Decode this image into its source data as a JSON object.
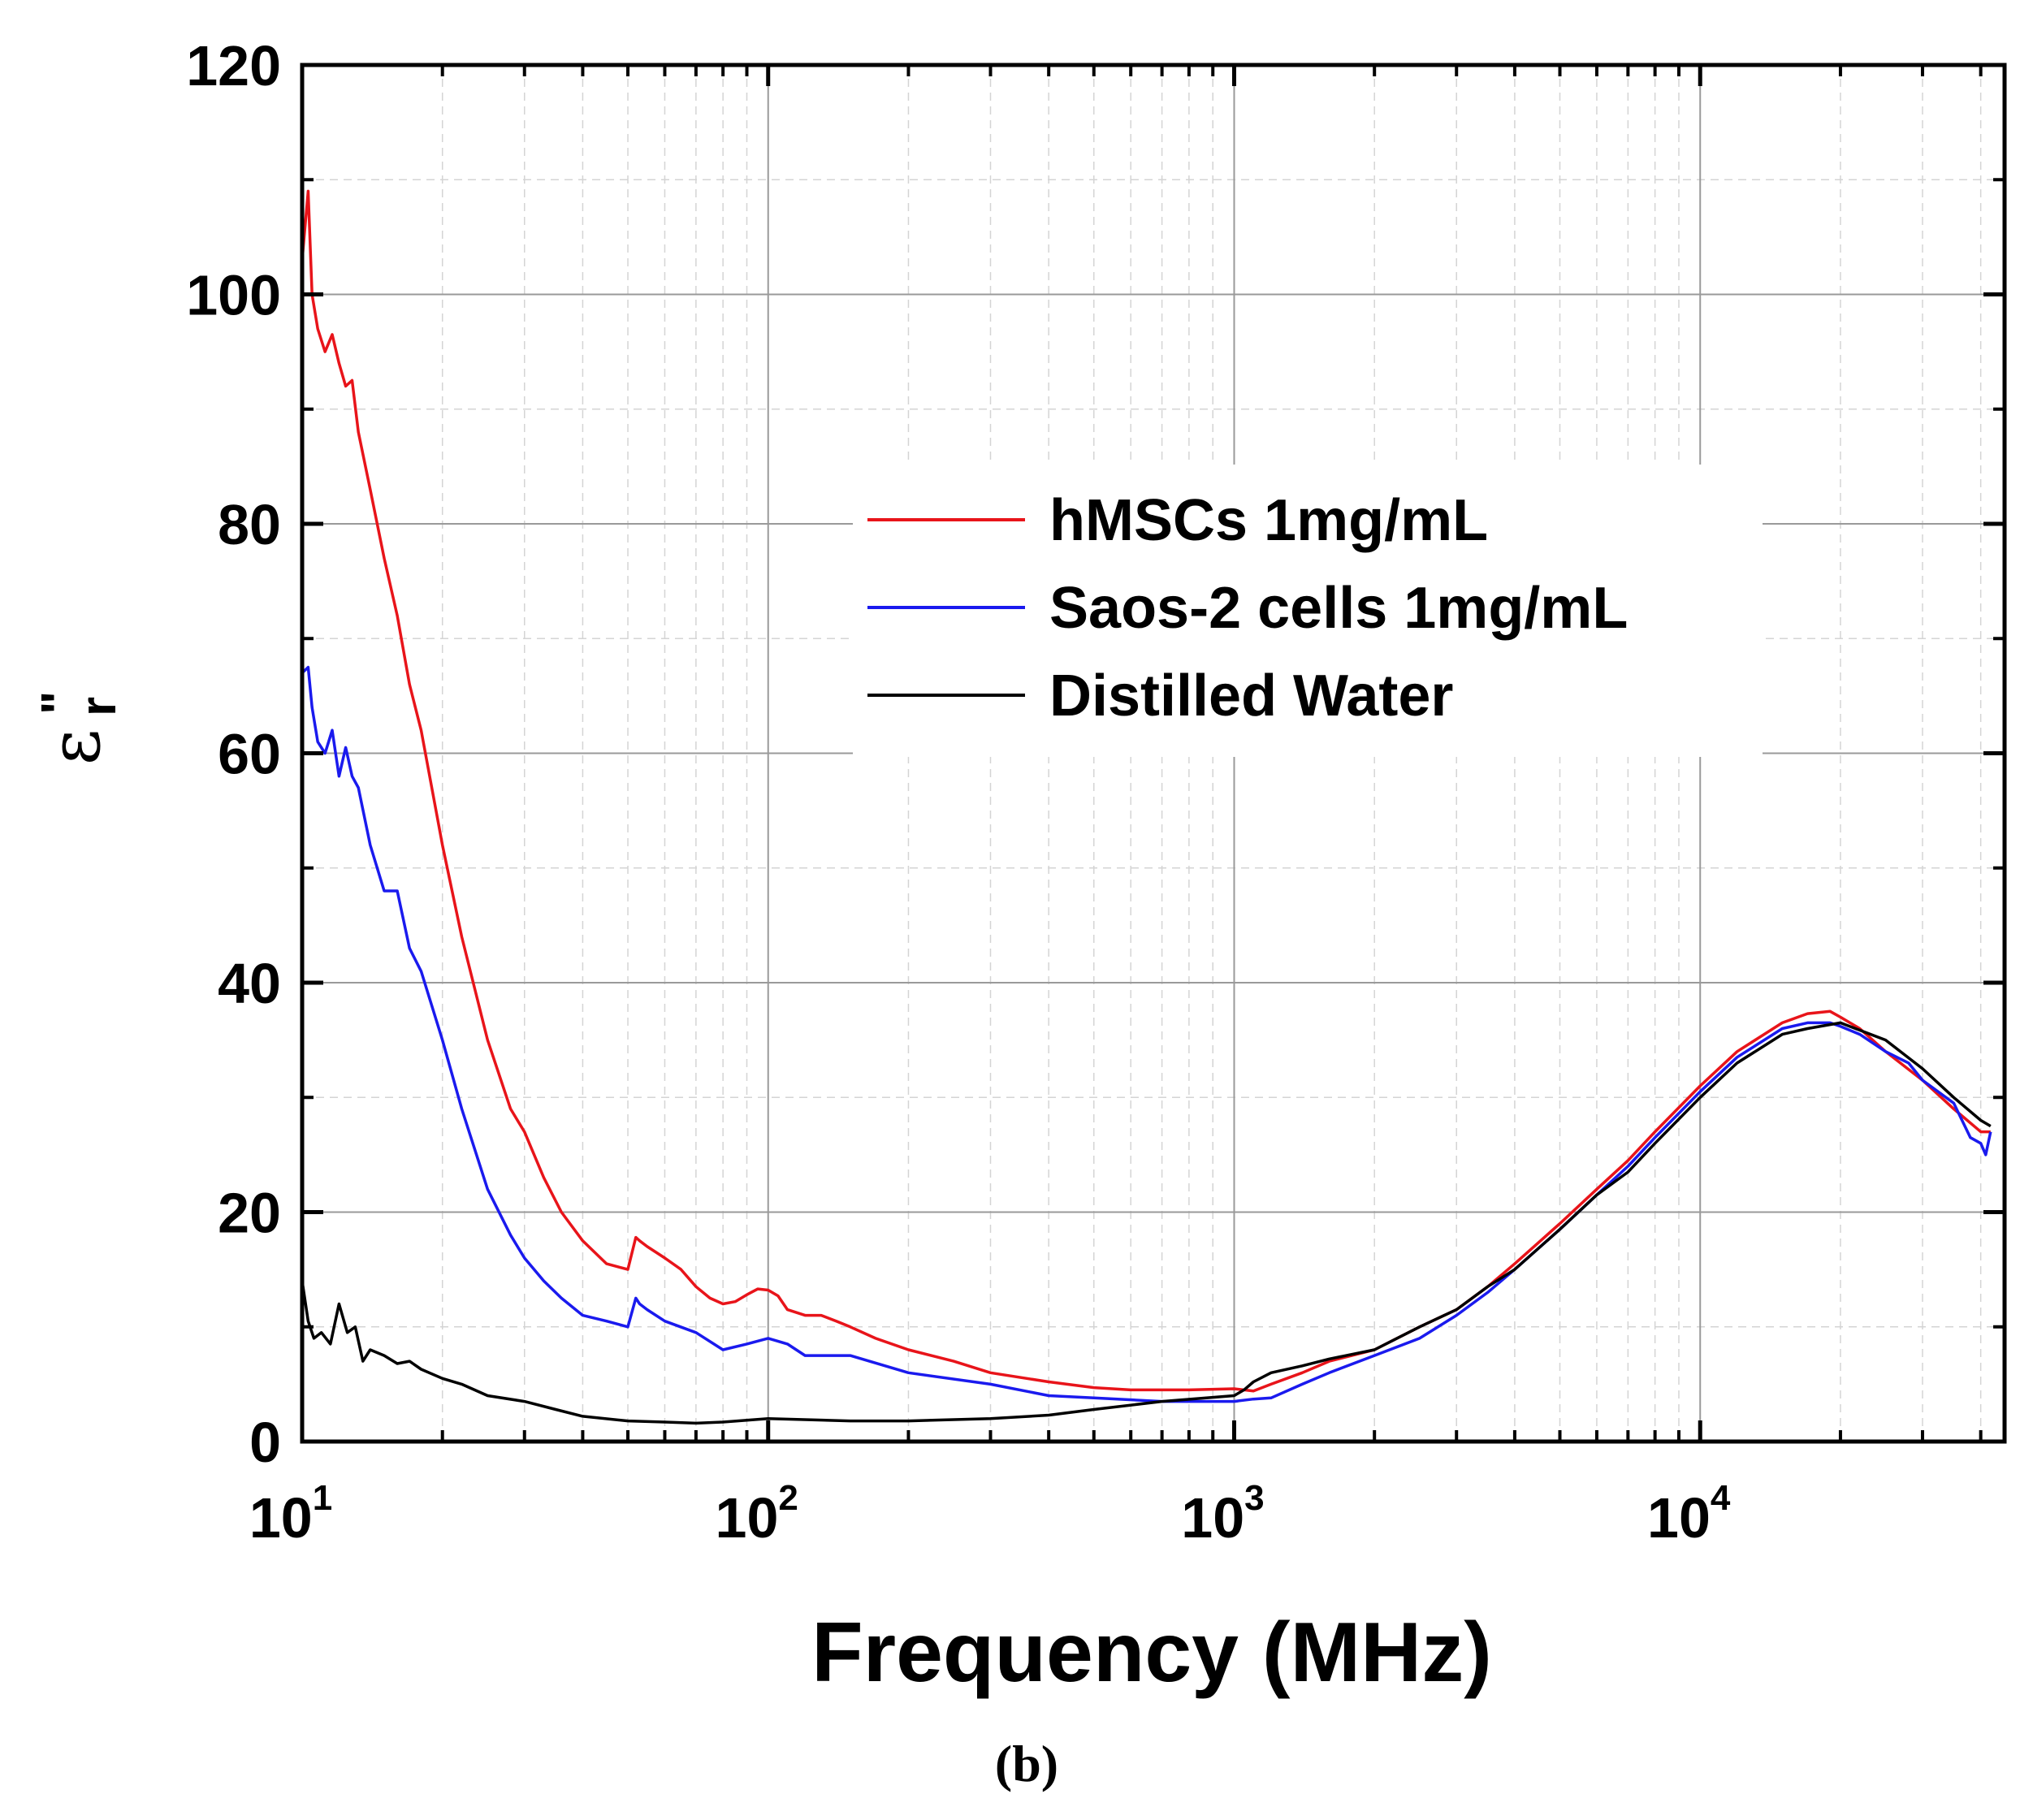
{
  "chart_data": {
    "type": "line",
    "xscale": "log",
    "xlim": [
      10,
      45000
    ],
    "ylim": [
      0,
      120
    ],
    "xlabel": "Frequency (MHz)",
    "ylabel": "ε",
    "ylabel_sub": "r",
    "ylabel_sup": "\"",
    "grid": true,
    "x_major_ticks": [
      {
        "value": 10,
        "base": "10",
        "exp": "1"
      },
      {
        "value": 100,
        "base": "10",
        "exp": "2"
      },
      {
        "value": 1000,
        "base": "10",
        "exp": "3"
      },
      {
        "value": 10000,
        "base": "10",
        "exp": "4"
      }
    ],
    "y_ticks": [
      0,
      20,
      40,
      60,
      80,
      100,
      120
    ],
    "legend_position": "center-right",
    "series": [
      {
        "name": "hMSCs 1mg/mL",
        "color": "#e8141a",
        "x": [
          10,
          10.3,
          10.5,
          10.8,
          11.2,
          11.6,
          12,
          12.4,
          12.8,
          13.2,
          14,
          15,
          16,
          17,
          18,
          20,
          22,
          25,
          28,
          30,
          33,
          36,
          40,
          45,
          50,
          52,
          53,
          55,
          60,
          65,
          70,
          75,
          80,
          85,
          90,
          95,
          100,
          105,
          110,
          120,
          130,
          140,
          150,
          170,
          200,
          250,
          300,
          400,
          500,
          600,
          800,
          1000,
          1100,
          1200,
          1400,
          1600,
          2000,
          2500,
          3000,
          3500,
          4000,
          5000,
          6000,
          7000,
          8000,
          10000,
          12000,
          15000,
          17000,
          19000,
          20000,
          22000,
          25000,
          30000,
          35000,
          40000,
          42000
        ],
        "y": [
          103,
          109,
          100,
          97,
          95,
          96.5,
          94,
          92,
          92.5,
          88,
          83,
          77,
          72,
          66,
          62,
          52,
          44,
          35,
          29,
          27,
          23,
          20,
          17.5,
          15.5,
          15,
          17.8,
          17.5,
          17,
          16,
          15,
          13.5,
          12.5,
          12,
          12.2,
          12.8,
          13.3,
          13.2,
          12.7,
          11.5,
          11,
          11,
          10.5,
          10,
          9,
          8,
          7,
          6,
          5.2,
          4.7,
          4.5,
          4.5,
          4.6,
          4.4,
          5,
          6,
          7,
          8,
          10,
          11.5,
          13.5,
          15.5,
          19,
          22,
          24.5,
          27,
          31,
          34,
          36.5,
          37.3,
          37.5,
          37,
          36,
          34,
          31.5,
          29,
          27,
          27
        ]
      },
      {
        "name": "Saos-2 cells 1mg/mL",
        "color": "#1a1aee",
        "x": [
          10,
          10.3,
          10.5,
          10.8,
          11.2,
          11.6,
          12,
          12.4,
          12.8,
          13.2,
          14,
          15,
          16,
          17,
          18,
          20,
          22,
          25,
          28,
          30,
          33,
          36,
          40,
          45,
          50,
          52,
          53,
          55,
          60,
          70,
          80,
          90,
          100,
          110,
          120,
          150,
          200,
          300,
          400,
          500,
          700,
          1000,
          1100,
          1200,
          1400,
          1600,
          2000,
          2500,
          3000,
          3500,
          4000,
          5000,
          6000,
          7000,
          8000,
          10000,
          12000,
          15000,
          17000,
          19000,
          20000,
          22000,
          25000,
          28000,
          30000,
          35000,
          38000,
          40000,
          41000,
          42000
        ],
        "y": [
          67,
          67.5,
          64,
          61,
          60,
          62,
          58,
          60.5,
          58,
          57,
          52,
          48,
          48,
          43,
          41,
          35,
          29,
          22,
          18,
          16,
          14,
          12.5,
          11,
          10.5,
          10,
          12.5,
          12,
          11.5,
          10.5,
          9.5,
          8,
          8.5,
          9,
          8.5,
          7.5,
          7.5,
          6,
          5,
          4,
          3.8,
          3.5,
          3.5,
          3.7,
          3.8,
          5,
          6,
          7.5,
          9,
          11,
          13,
          15,
          18.5,
          21.5,
          24,
          26.5,
          30.5,
          33.5,
          36,
          36.5,
          36.5,
          36.2,
          35.5,
          34,
          33,
          31.5,
          29.5,
          26.5,
          26,
          25,
          27
        ]
      },
      {
        "name": "Distilled Water",
        "color": "#000000",
        "x": [
          10,
          10.3,
          10.6,
          11,
          11.5,
          12,
          12.5,
          13,
          13.5,
          14,
          15,
          16,
          17,
          18,
          20,
          22,
          25,
          30,
          35,
          40,
          50,
          60,
          70,
          80,
          100,
          150,
          200,
          300,
          400,
          500,
          700,
          1000,
          1050,
          1100,
          1200,
          1400,
          1600,
          2000,
          2500,
          3000,
          3500,
          4000,
          5000,
          6000,
          7000,
          8000,
          10000,
          12000,
          15000,
          17000,
          20000,
          25000,
          30000,
          35000,
          40000,
          42000
        ],
        "y": [
          14,
          10.5,
          9,
          9.5,
          8.5,
          12,
          9.5,
          10,
          7,
          8,
          7.5,
          6.8,
          7,
          6.3,
          5.5,
          5,
          4,
          3.5,
          2.8,
          2.2,
          1.8,
          1.7,
          1.6,
          1.7,
          2,
          1.8,
          1.8,
          2,
          2.3,
          2.8,
          3.5,
          4,
          4.5,
          5.2,
          6,
          6.6,
          7.2,
          8,
          10,
          11.5,
          13.5,
          15,
          18.5,
          21.5,
          23.5,
          26,
          30,
          33,
          35.5,
          36,
          36.5,
          35,
          32.5,
          30,
          28,
          27.5
        ]
      }
    ]
  },
  "caption": "(b)"
}
